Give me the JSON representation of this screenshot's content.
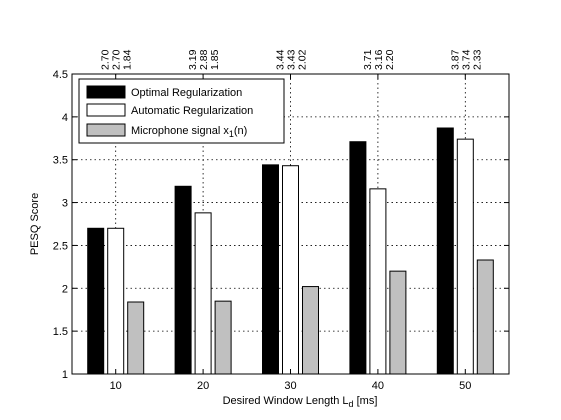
{
  "chart_data": {
    "type": "bar",
    "categories": [
      "10",
      "20",
      "30",
      "40",
      "50"
    ],
    "xlabel_main": "Desired Window Length L",
    "xlabel_sub": "d",
    "xlabel_unit": " [ms]",
    "ylabel": "PESQ Score",
    "ylim": [
      1,
      4.5
    ],
    "yticks": [
      "1",
      "1.5",
      "2",
      "2.5",
      "3",
      "3.5",
      "4",
      "4.5"
    ],
    "grid": true,
    "legend_position": "top-left",
    "series": [
      {
        "name": "Optimal Regularization",
        "color": "#000000",
        "values": [
          2.7,
          3.19,
          3.44,
          3.71,
          3.87
        ],
        "labels": [
          "2.70",
          "3.19",
          "3.44",
          "3.71",
          "3.87"
        ]
      },
      {
        "name": "Automatic Regularization",
        "color": "#ffffff",
        "values": [
          2.7,
          2.88,
          3.43,
          3.16,
          3.74
        ],
        "labels": [
          "2.70",
          "2.88",
          "3.43",
          "3.16",
          "3.74"
        ]
      },
      {
        "name_main": "Microphone signal x",
        "name_sub": "1",
        "name_tail": "(n)",
        "color": "#c0c0c0",
        "values": [
          1.84,
          1.85,
          2.02,
          2.2,
          2.33
        ],
        "labels": [
          "1.84",
          "1.85",
          "2.02",
          "2.20",
          "2.33"
        ]
      }
    ]
  }
}
